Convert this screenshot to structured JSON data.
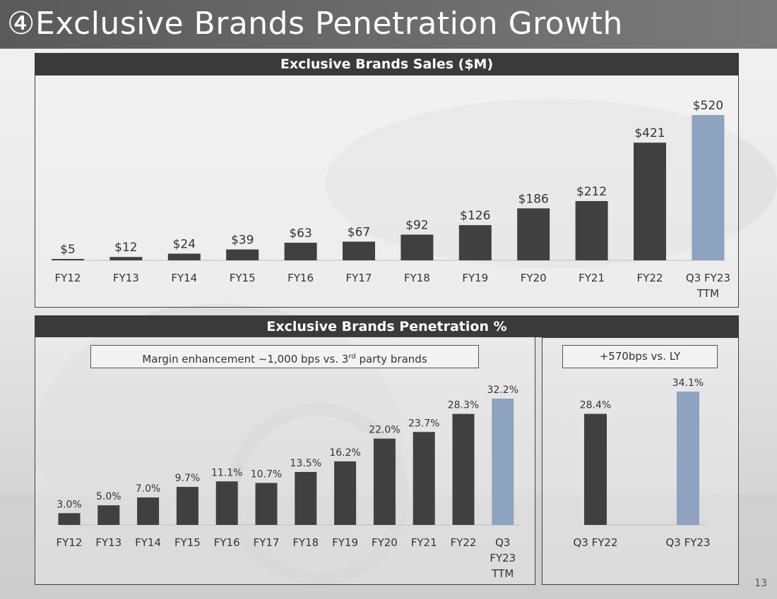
{
  "header": {
    "title": "④Exclusive Brands Penetration Growth"
  },
  "page_number": "13",
  "colors": {
    "bar_dark": "#404040",
    "bar_highlight": "#8da3bf",
    "header_bg": "#3a3a3a"
  },
  "chart_data": [
    {
      "type": "bar",
      "title": "Exclusive Brands Sales ($M)",
      "categories": [
        "FY12",
        "FY13",
        "FY14",
        "FY15",
        "FY16",
        "FY17",
        "FY18",
        "FY19",
        "FY20",
        "FY21",
        "FY22",
        "Q3 FY23 TTM"
      ],
      "values": [
        5,
        12,
        24,
        39,
        63,
        67,
        92,
        126,
        186,
        212,
        421,
        520
      ],
      "data_labels": [
        "$5",
        "$12",
        "$24",
        "$39",
        "$63",
        "$67",
        "$92",
        "$126",
        "$186",
        "$212",
        "$421",
        "$520"
      ],
      "highlight_last": true,
      "ylim": [
        0,
        520
      ]
    },
    {
      "type": "bar",
      "title": "Exclusive Brands Penetration %",
      "callout": "Margin enhancement ~1,000 bps vs. 3rd party brands",
      "categories": [
        "FY12",
        "FY13",
        "FY14",
        "FY15",
        "FY16",
        "FY17",
        "FY18",
        "FY19",
        "FY20",
        "FY21",
        "FY22",
        "Q3 FY23 TTM"
      ],
      "values": [
        3.0,
        5.0,
        7.0,
        9.7,
        11.1,
        10.7,
        13.5,
        16.2,
        22.0,
        23.7,
        28.3,
        32.2
      ],
      "data_labels": [
        "3.0%",
        "5.0%",
        "7.0%",
        "9.7%",
        "11.1%",
        "10.7%",
        "13.5%",
        "16.2%",
        "22.0%",
        "23.7%",
        "28.3%",
        "32.2%"
      ],
      "highlight_last": true,
      "ylim": [
        0,
        32.2
      ]
    },
    {
      "type": "bar",
      "callout": "+570bps vs. LY",
      "categories": [
        "Q3 FY22",
        "Q3 FY23"
      ],
      "values": [
        28.4,
        34.1
      ],
      "data_labels": [
        "28.4%",
        "34.1%"
      ],
      "highlight_last": true,
      "ylim": [
        0,
        34.1
      ]
    }
  ]
}
